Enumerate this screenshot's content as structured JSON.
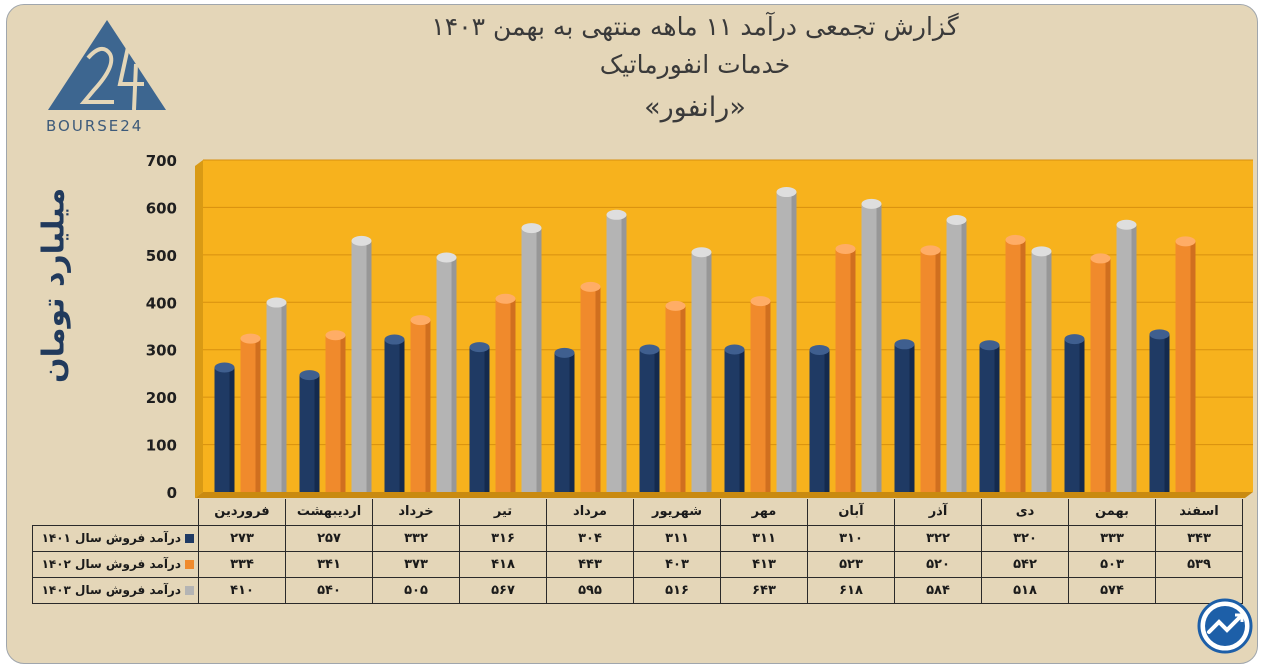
{
  "title": {
    "line1": "گزارش تجمعی درآمد ۱۱ ماهه منتهی به بهمن ۱۴۰۳",
    "line2": "خدمات انفورماتیک",
    "line3": "«رانفور»"
  },
  "logo": {
    "text": "BOURSE24"
  },
  "colors": {
    "background": "#e4d6b8",
    "plot_area": "#f7b21d",
    "series_1401": "#1f3a64",
    "series_1402": "#f08a2c",
    "series_1403": "#b4b4b4"
  },
  "chart_data": {
    "type": "bar",
    "ylabel": "میلیارد تومان",
    "ylim": [
      0,
      700
    ],
    "yticks": [
      {
        "value": 0,
        "label": "0"
      },
      {
        "value": 100,
        "label": "100"
      },
      {
        "value": 200,
        "label": "200"
      },
      {
        "value": 300,
        "label": "300"
      },
      {
        "value": 400,
        "label": "400"
      },
      {
        "value": 500,
        "label": "500"
      },
      {
        "value": 600,
        "label": "600"
      },
      {
        "value": 700,
        "label": "700"
      }
    ],
    "grid": true,
    "categories": [
      "اسفند",
      "بهمن",
      "دی",
      "آذر",
      "آبان",
      "مهر",
      "شهریور",
      "مرداد",
      "تیر",
      "خرداد",
      "اردیبهشت",
      "فروردین"
    ],
    "series": [
      {
        "name": "درآمد فروش سال ۱۴۰۱",
        "color": "#1f3a64",
        "values": [
          343,
          333,
          320,
          322,
          310,
          311,
          311,
          304,
          316,
          332,
          257,
          273
        ],
        "labels": [
          "۳۴۳",
          "۳۳۳",
          "۳۲۰",
          "۳۲۲",
          "۳۱۰",
          "۳۱۱",
          "۳۱۱",
          "۳۰۴",
          "۳۱۶",
          "۳۳۲",
          "۲۵۷",
          "۲۷۳"
        ]
      },
      {
        "name": "درآمد فروش سال ۱۴۰۲",
        "color": "#f08a2c",
        "values": [
          539,
          503,
          542,
          520,
          523,
          413,
          403,
          443,
          418,
          373,
          341,
          334
        ],
        "labels": [
          "۵۳۹",
          "۵۰۳",
          "۵۴۲",
          "۵۲۰",
          "۵۲۳",
          "۴۱۳",
          "۴۰۳",
          "۴۴۳",
          "۴۱۸",
          "۳۷۳",
          "۳۴۱",
          "۳۳۴"
        ]
      },
      {
        "name": "درآمد فروش سال ۱۴۰۳",
        "color": "#b4b4b4",
        "values": [
          null,
          574,
          518,
          584,
          618,
          643,
          516,
          595,
          567,
          505,
          540,
          410
        ],
        "labels": [
          "",
          "۵۷۴",
          "۵۱۸",
          "۵۸۴",
          "۶۱۸",
          "۶۴۳",
          "۵۱۶",
          "۵۹۵",
          "۵۶۷",
          "۵۰۵",
          "۵۴۰",
          "۴۱۰"
        ]
      }
    ]
  }
}
